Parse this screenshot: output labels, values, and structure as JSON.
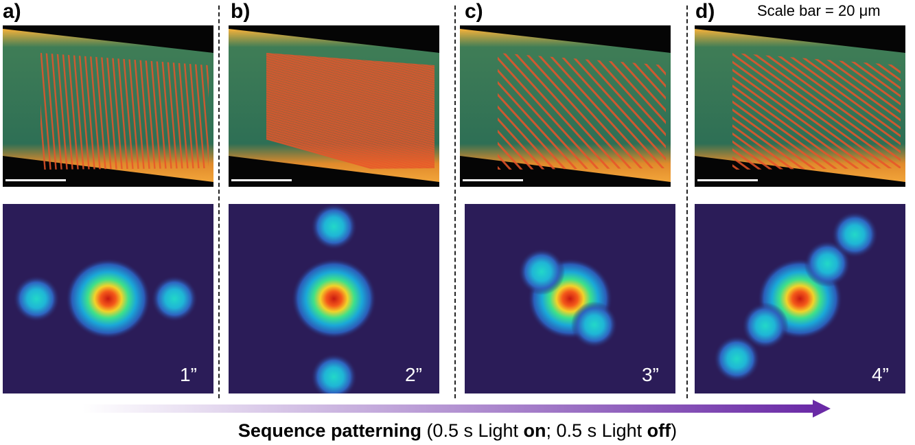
{
  "figure": {
    "scale_bar_text": "Scale bar = 20 μm",
    "panels": [
      {
        "label": "a)",
        "time": "1”",
        "stripe_angle_deg": 4,
        "spots": [
          {
            "id": "center",
            "dx": 0.0,
            "dy": 0.0,
            "peak": 1.0
          },
          {
            "id": "left",
            "dx": -0.68,
            "dy": 0.0,
            "peak": 0.55
          },
          {
            "id": "right",
            "dx": 0.63,
            "dy": 0.0,
            "peak": 0.55
          }
        ]
      },
      {
        "label": "b)",
        "time": "2”",
        "stripe_angle_deg": 72,
        "spots": [
          {
            "id": "center",
            "dx": 0.0,
            "dy": 0.0,
            "peak": 1.0
          },
          {
            "id": "top",
            "dx": 0.0,
            "dy": -0.72,
            "peak": 0.5
          },
          {
            "id": "bottom",
            "dx": 0.0,
            "dy": 0.78,
            "peak": 0.5
          }
        ]
      },
      {
        "label": "c)",
        "time": "3”",
        "stripe_angle_deg": 38,
        "spots": [
          {
            "id": "center",
            "dx": 0.0,
            "dy": 0.0,
            "peak": 1.0
          },
          {
            "id": "upper-left",
            "dx": -0.27,
            "dy": -0.27,
            "peak": 0.5
          },
          {
            "id": "lower-right",
            "dx": 0.23,
            "dy": 0.26,
            "peak": 0.4
          }
        ]
      },
      {
        "label": "d)",
        "time": "4”",
        "stripe_angle_deg": 50,
        "spots": [
          {
            "id": "center",
            "dx": 0.0,
            "dy": 0.0,
            "peak": 1.0
          },
          {
            "id": "lower-left",
            "dx": -0.33,
            "dy": 0.27,
            "peak": 0.45
          },
          {
            "id": "upper-right",
            "dx": 0.26,
            "dy": -0.35,
            "peak": 0.45
          },
          {
            "id": "far-upper-right",
            "dx": 0.52,
            "dy": -0.64,
            "peak": 0.4
          },
          {
            "id": "far-lower-left",
            "dx": -0.6,
            "dy": 0.6,
            "peak": 0.35
          }
        ]
      }
    ],
    "caption": {
      "bold_part": "Sequence patterning",
      "pre": " (0.5 s Light ",
      "on": "on",
      "mid": "; 0.5 s Light ",
      "off": "off",
      "post": ")"
    },
    "colors": {
      "arrow_start": "#ffffff",
      "arrow_end": "#6a2aa6",
      "diffraction_background": "#2b1c58"
    }
  }
}
